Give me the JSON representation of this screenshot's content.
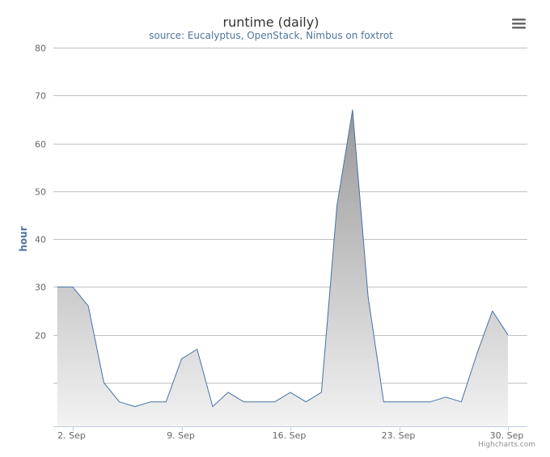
{
  "chart_data": {
    "type": "area",
    "title": "runtime (daily)",
    "subtitle": "source: Eucalyptus, OpenStack, Nimbus on foxtrot",
    "ylabel": "hour",
    "xlabel": "",
    "ylim": [
      0,
      80
    ],
    "yticks": [
      0,
      10,
      20,
      30,
      40,
      50,
      60,
      70,
      80
    ],
    "ytick_labels": [
      "",
      "",
      "20",
      "30",
      "40",
      "50",
      "60",
      "70",
      "80"
    ],
    "xrange": [
      1.0,
      31.0
    ],
    "xticks": [
      2,
      9,
      16,
      23,
      30
    ],
    "xtick_labels": [
      "2. Sep",
      "9. Sep",
      "16. Sep",
      "23. Sep",
      "30. Sep"
    ],
    "grid": true,
    "legend": "none",
    "fill_gradient": [
      "#999999",
      "#f2f2f2"
    ],
    "line_color": "#4572a7",
    "series": [
      {
        "x": [
          1,
          2,
          3,
          4,
          5,
          6,
          7,
          8,
          9,
          10,
          11,
          12,
          13,
          14,
          15,
          16,
          17,
          18,
          19,
          20,
          21,
          22,
          23,
          24,
          25,
          26,
          27,
          28,
          29,
          30
        ],
        "values": [
          30,
          30,
          26,
          10,
          6,
          5,
          6,
          6,
          15,
          17,
          5,
          8,
          6,
          6,
          6,
          8,
          6,
          8,
          47,
          67,
          28,
          6,
          6,
          6,
          6,
          7,
          6,
          16,
          25,
          20
        ]
      }
    ]
  },
  "credits": "Highcharts.com",
  "menu": {
    "icon": "menu-icon"
  }
}
